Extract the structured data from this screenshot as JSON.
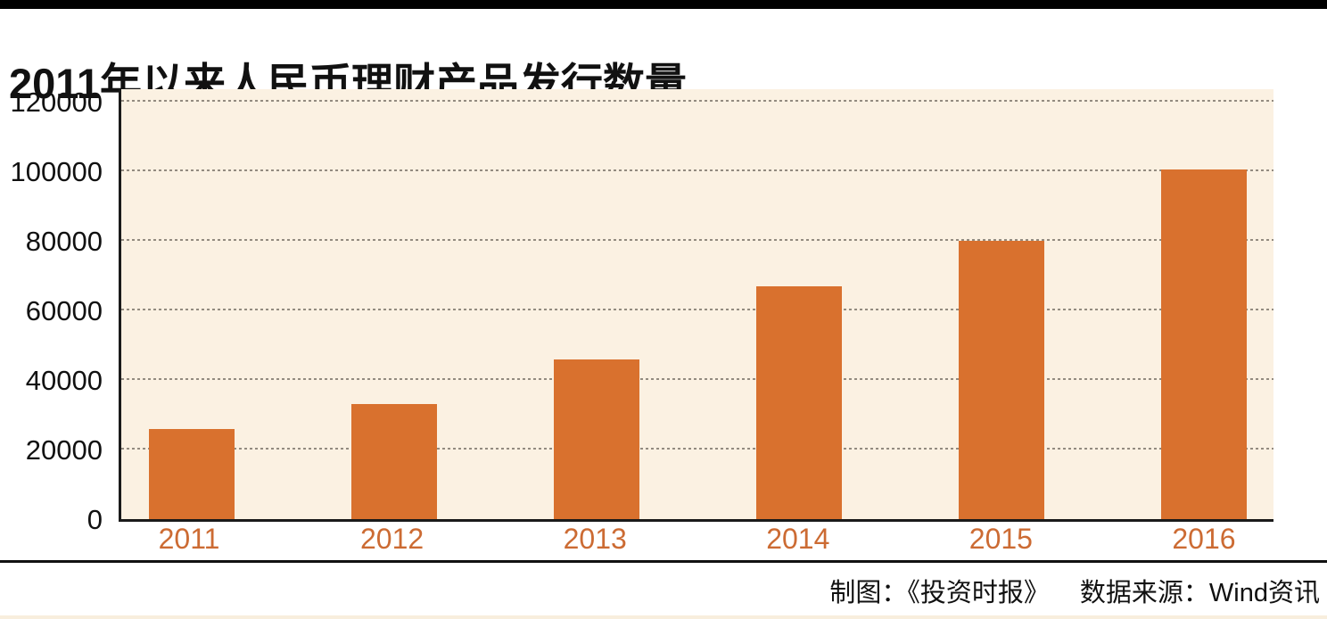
{
  "page": {
    "title": "2011年以来人民币理财产品发行数量"
  },
  "footer": {
    "credit": "制图：《投资时报》",
    "source": "数据来源：Wind资讯"
  },
  "colors": {
    "bar": "#d9712e",
    "plot_background": "#fbf1e2",
    "axis_line": "#1a1a1a",
    "gridline": "#938b80",
    "year_label": "#cc6b33",
    "top_bar": "#000000",
    "separator_line": "#111111",
    "bottom_line": "#f8eedd",
    "title_text": "#111111"
  },
  "chart_data": {
    "type": "bar",
    "title": "2011年以来人民币理财产品发行数量",
    "categories": [
      "2011",
      "2012",
      "2013",
      "2014",
      "2015",
      "2016"
    ],
    "values": [
      26000,
      33000,
      46000,
      67000,
      80000,
      100500
    ],
    "xlabel": "",
    "ylabel": "",
    "ylim": [
      0,
      124000
    ],
    "yticks": [
      0,
      20000,
      40000,
      60000,
      80000,
      100000,
      120000
    ],
    "grid": "horizontal-dotted",
    "legend_position": "none",
    "bar_color": "#d9712e",
    "source_note": "制图：《投资时报》  数据来源：Wind资讯"
  }
}
